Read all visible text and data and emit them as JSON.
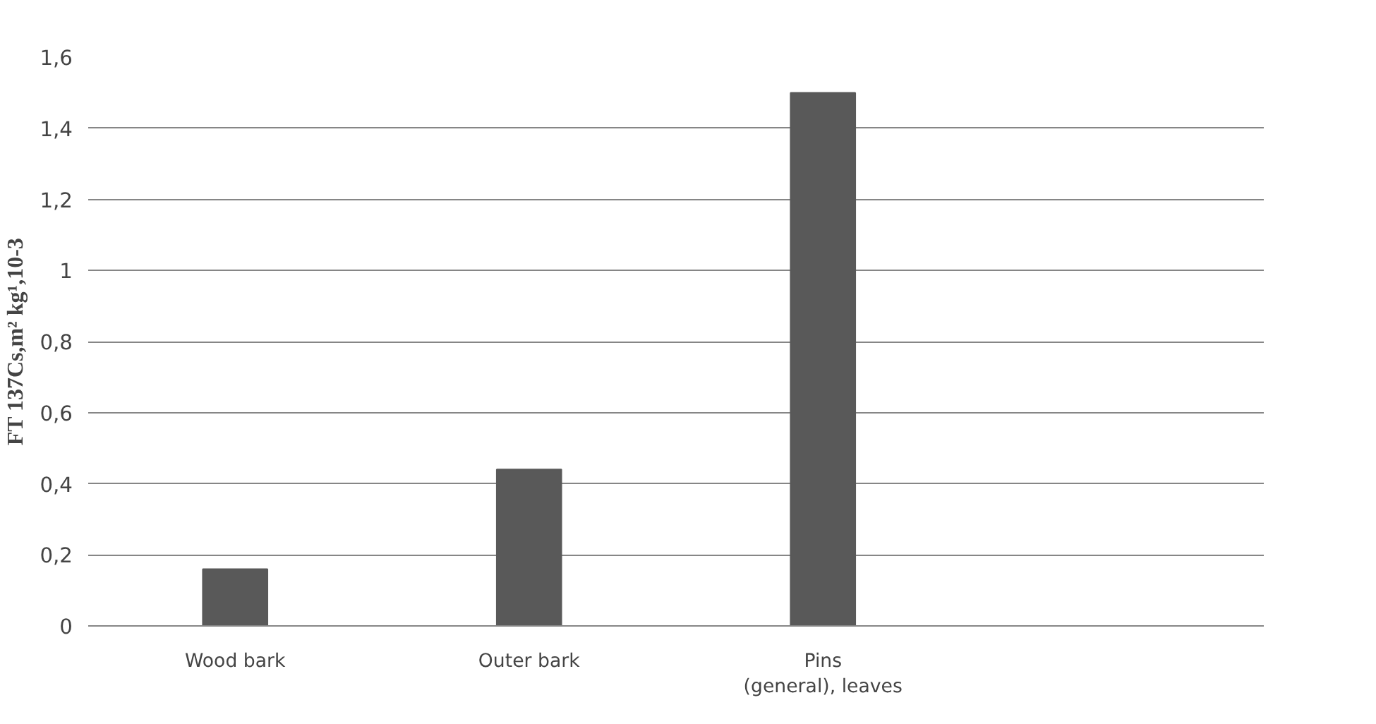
{
  "chart_data": {
    "type": "bar",
    "ylabel": "FT 137Cs,m² kg¹,10-3",
    "categories": [
      "Wood bark",
      "Outer bark",
      "Pins\n(general), leaves",
      null
    ],
    "values": [
      0.16,
      0.44,
      1.5,
      null
    ],
    "color": "#595959",
    "ylim": [
      0,
      1.6
    ],
    "yticks": [
      0,
      {
        "value": 0.2,
        "label": "0,2"
      },
      {
        "value": 0.4,
        "label": "0,4"
      },
      {
        "value": 0.6,
        "label": "0,6"
      },
      {
        "value": 0.8,
        "label": "0,8"
      },
      1,
      {
        "value": 1.2,
        "label": "1,2"
      },
      {
        "value": 1.4,
        "label": "1,4"
      },
      {
        "value": 1.6,
        "label": "1,6"
      }
    ],
    "grid": "y"
  }
}
